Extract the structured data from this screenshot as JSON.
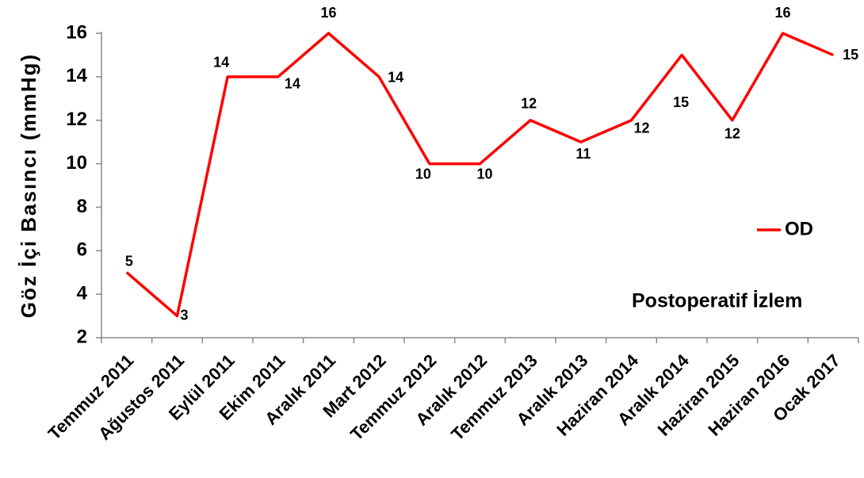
{
  "chart_data": {
    "type": "line",
    "y_label": "Göz İçi Basıncı (mmHg)",
    "annotation": "Postoperatif İzlem",
    "categories": [
      "Temmuz 2011",
      "Ağustos 2011",
      "Eylül 2011",
      "Ekim 2011",
      "Aralık 2011",
      "Mart 2012",
      "Temmuz 2012",
      "Aralık 2012",
      "Temmuz 2013",
      "Aralık 2013",
      "Haziran 2014",
      "Aralık 2014",
      "Haziran 2015",
      "Haziran 2016",
      "Ocak 2017"
    ],
    "series": [
      {
        "name": "OD",
        "color": "#ff0000",
        "values": [
          5,
          3,
          14,
          14,
          16,
          14,
          10,
          10,
          12,
          11,
          12,
          15,
          12,
          16,
          15
        ]
      }
    ],
    "ylim": [
      2,
      16
    ],
    "yticks": [
      2,
      4,
      6,
      8,
      10,
      12,
      14,
      16
    ],
    "legend": "right",
    "grid": false
  }
}
